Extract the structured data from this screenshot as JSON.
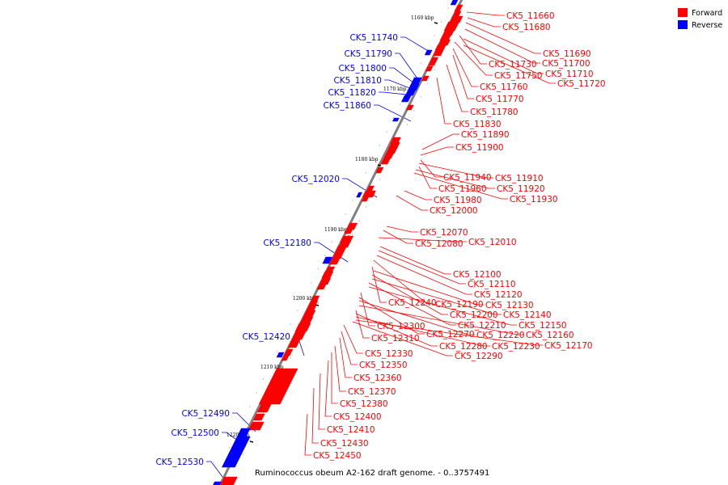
{
  "title": "Ruminococcus obeum A2-162 draft genome. - 0..3757491",
  "legend": [
    {
      "label": "Forward",
      "color": "#ff0000"
    },
    {
      "label": "Reverse",
      "color": "#0000ff"
    }
  ],
  "colors": {
    "forward": "#ff0000",
    "reverse": "#0000ff",
    "backbone": "#808080"
  },
  "kbp_ticks": [
    "1160 kbp",
    "1170 kbp",
    "1180 kbp",
    "1190 kbp",
    "1200 kbp",
    "1210 kbp",
    "1220 kbp"
  ],
  "forward_genes": [
    "CK5_11660",
    "CK5_11680",
    "CK5_11690",
    "CK5_11700",
    "CK5_11730",
    "CK5_11710",
    "CK5_11750",
    "CK5_11720",
    "CK5_11760",
    "CK5_11770",
    "CK5_11780",
    "CK5_11830",
    "CK5_11890",
    "CK5_11900",
    "CK5_11940",
    "CK5_11910",
    "CK5_11960",
    "CK5_11920",
    "CK5_11930",
    "CK5_11980",
    "CK5_12000",
    "CK5_12070",
    "CK5_12080",
    "CK5_12010",
    "CK5_12100",
    "CK5_12110",
    "CK5_12120",
    "CK5_12240",
    "CK5_12190",
    "CK5_12130",
    "CK5_12200",
    "CK5_12140",
    "CK5_12210",
    "CK5_12150",
    "CK5_12300",
    "CK5_12270",
    "CK5_12220",
    "CK5_12160",
    "CK5_12310",
    "CK5_12280",
    "CK5_12230",
    "CK5_12170",
    "CK5_12290",
    "CK5_12330",
    "CK5_12350",
    "CK5_12360",
    "CK5_12370",
    "CK5_12380",
    "CK5_12400",
    "CK5_12410",
    "CK5_12430",
    "CK5_12450"
  ],
  "reverse_genes": [
    "CK5_11740",
    "CK5_11790",
    "CK5_11800",
    "CK5_11810",
    "CK5_11820",
    "CK5_11860",
    "CK5_12020",
    "CK5_12180",
    "CK5_12420",
    "CK5_12490",
    "CK5_12500",
    "CK5_12530"
  ]
}
